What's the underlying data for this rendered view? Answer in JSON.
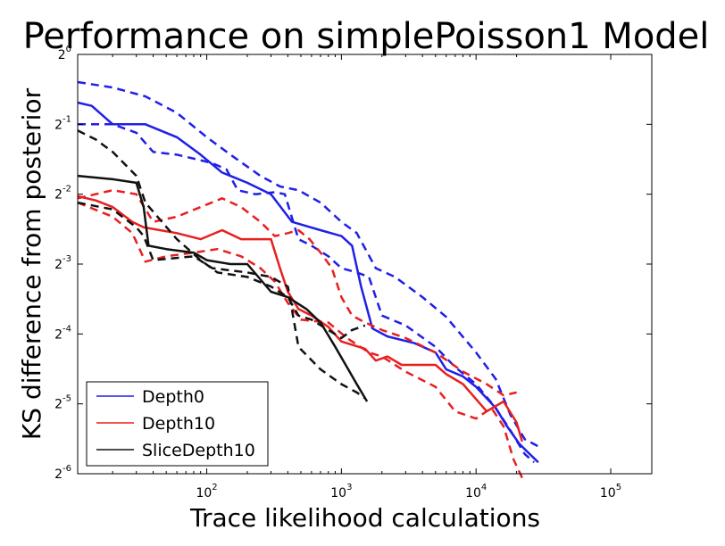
{
  "chart_data": {
    "type": "line",
    "title": "Performance on simplePoisson1 Model",
    "xlabel": "Trace likelihood calculations",
    "ylabel": "KS difference from posterior",
    "xscale": "log10",
    "yscale": "log2",
    "xlim": [
      11,
      20000
    ],
    "ylim": [
      0.015625,
      1
    ],
    "x_ticks": [
      {
        "base": "10",
        "exp": "2",
        "value": 100
      },
      {
        "base": "10",
        "exp": "3",
        "value": 1000
      },
      {
        "base": "10",
        "exp": "4",
        "value": 10000
      },
      {
        "base": "10",
        "exp": "5",
        "value": 100000
      }
    ],
    "y_ticks": [
      {
        "base": "2",
        "exp": "0",
        "value": 1
      },
      {
        "base": "2",
        "exp": "-1",
        "value": 0.5
      },
      {
        "base": "2",
        "exp": "-2",
        "value": 0.25
      },
      {
        "base": "2",
        "exp": "-3",
        "value": 0.125
      },
      {
        "base": "2",
        "exp": "-4",
        "value": 0.0625
      },
      {
        "base": "2",
        "exp": "-5",
        "value": 0.03125
      },
      {
        "base": "2",
        "exp": "-6",
        "value": 0.015625
      }
    ],
    "legend_position": "bottom-left",
    "series": [
      {
        "name": "Depth0",
        "color": "#1f1fe8",
        "style": "solid",
        "points": [
          [
            11,
            0.62
          ],
          [
            14,
            0.6
          ],
          [
            20,
            0.5
          ],
          [
            35,
            0.5
          ],
          [
            60,
            0.44
          ],
          [
            90,
            0.37
          ],
          [
            130,
            0.31
          ],
          [
            200,
            0.28
          ],
          [
            300,
            0.25
          ],
          [
            430,
            0.19
          ],
          [
            700,
            0.175
          ],
          [
            1000,
            0.165
          ],
          [
            1200,
            0.15
          ],
          [
            1400,
            0.1
          ],
          [
            1700,
            0.066
          ],
          [
            2200,
            0.061
          ],
          [
            3500,
            0.057
          ],
          [
            5000,
            0.052
          ],
          [
            6000,
            0.044
          ],
          [
            8000,
            0.041
          ],
          [
            10000,
            0.037
          ],
          [
            14000,
            0.03
          ],
          [
            17000,
            0.025
          ],
          [
            21000,
            0.021
          ],
          [
            25000,
            0.019
          ],
          [
            29000,
            0.0175
          ]
        ]
      },
      {
        "name": "",
        "color": "#1f1fe8",
        "style": "dashed",
        "points": [
          [
            11,
            0.76
          ],
          [
            20,
            0.72
          ],
          [
            35,
            0.66
          ],
          [
            60,
            0.56
          ],
          [
            100,
            0.44
          ],
          [
            150,
            0.37
          ],
          [
            250,
            0.3
          ],
          [
            350,
            0.27
          ],
          [
            480,
            0.26
          ],
          [
            700,
            0.23
          ],
          [
            1000,
            0.19
          ],
          [
            1300,
            0.17
          ],
          [
            1800,
            0.12
          ],
          [
            2500,
            0.11
          ],
          [
            4000,
            0.09
          ],
          [
            6000,
            0.074
          ],
          [
            10000,
            0.052
          ],
          [
            14000,
            0.04
          ],
          [
            18000,
            0.028
          ],
          [
            23000,
            0.022
          ],
          [
            29000,
            0.0205
          ]
        ]
      },
      {
        "name": "",
        "color": "#1f1fe8",
        "style": "dashed",
        "points": [
          [
            11,
            0.5
          ],
          [
            20,
            0.5
          ],
          [
            30,
            0.46
          ],
          [
            40,
            0.38
          ],
          [
            60,
            0.37
          ],
          [
            90,
            0.35
          ],
          [
            110,
            0.34
          ],
          [
            140,
            0.32
          ],
          [
            170,
            0.26
          ],
          [
            230,
            0.25
          ],
          [
            320,
            0.255
          ],
          [
            380,
            0.25
          ],
          [
            480,
            0.16
          ],
          [
            600,
            0.15
          ],
          [
            800,
            0.135
          ],
          [
            1000,
            0.12
          ],
          [
            1300,
            0.115
          ],
          [
            1600,
            0.11
          ],
          [
            2000,
            0.075
          ],
          [
            3000,
            0.068
          ],
          [
            5000,
            0.055
          ],
          [
            7000,
            0.045
          ],
          [
            10000,
            0.038
          ],
          [
            14000,
            0.03
          ],
          [
            18000,
            0.024
          ],
          [
            23000,
            0.019
          ],
          [
            27000,
            0.0175
          ]
        ]
      },
      {
        "name": "Depth10",
        "color": "#e81f1f",
        "style": "solid",
        "points": [
          [
            11,
            0.245
          ],
          [
            15,
            0.235
          ],
          [
            20,
            0.22
          ],
          [
            28,
            0.19
          ],
          [
            34,
            0.18
          ],
          [
            45,
            0.175
          ],
          [
            60,
            0.17
          ],
          [
            90,
            0.16
          ],
          [
            130,
            0.175
          ],
          [
            180,
            0.16
          ],
          [
            300,
            0.16
          ],
          [
            350,
            0.12
          ],
          [
            400,
            0.095
          ],
          [
            480,
            0.08
          ],
          [
            600,
            0.075
          ],
          [
            800,
            0.067
          ],
          [
            1000,
            0.058
          ],
          [
            1500,
            0.054
          ],
          [
            1800,
            0.048
          ],
          [
            2200,
            0.05
          ],
          [
            2800,
            0.046
          ],
          [
            5000,
            0.046
          ],
          [
            6000,
            0.042
          ],
          [
            8000,
            0.038
          ],
          [
            12000,
            0.029
          ],
          [
            16000,
            0.032
          ],
          [
            20000,
            0.026
          ],
          [
            22000,
            0.0215
          ]
        ]
      },
      {
        "name": "",
        "color": "#e81f1f",
        "style": "dashed",
        "points": [
          [
            11,
            0.24
          ],
          [
            20,
            0.26
          ],
          [
            30,
            0.25
          ],
          [
            40,
            0.19
          ],
          [
            60,
            0.2
          ],
          [
            90,
            0.22
          ],
          [
            130,
            0.24
          ],
          [
            180,
            0.22
          ],
          [
            250,
            0.19
          ],
          [
            320,
            0.165
          ],
          [
            400,
            0.17
          ],
          [
            480,
            0.175
          ],
          [
            580,
            0.16
          ],
          [
            700,
            0.14
          ],
          [
            850,
            0.12
          ],
          [
            1000,
            0.09
          ],
          [
            1200,
            0.075
          ],
          [
            1500,
            0.07
          ],
          [
            2000,
            0.065
          ],
          [
            3000,
            0.06
          ],
          [
            5000,
            0.052
          ],
          [
            8000,
            0.043
          ],
          [
            12000,
            0.038
          ],
          [
            16000,
            0.034
          ],
          [
            20000,
            0.035
          ]
        ]
      },
      {
        "name": "",
        "color": "#e81f1f",
        "style": "dashed",
        "points": [
          [
            11,
            0.23
          ],
          [
            20,
            0.2
          ],
          [
            28,
            0.17
          ],
          [
            35,
            0.128
          ],
          [
            50,
            0.135
          ],
          [
            80,
            0.14
          ],
          [
            120,
            0.145
          ],
          [
            180,
            0.135
          ],
          [
            250,
            0.12
          ],
          [
            320,
            0.105
          ],
          [
            400,
            0.085
          ],
          [
            500,
            0.072
          ],
          [
            800,
            0.07
          ],
          [
            1100,
            0.06
          ],
          [
            1600,
            0.052
          ],
          [
            2000,
            0.05
          ],
          [
            3000,
            0.043
          ],
          [
            5000,
            0.037
          ],
          [
            7000,
            0.029
          ],
          [
            10000,
            0.027
          ],
          [
            13000,
            0.03
          ],
          [
            16000,
            0.025
          ],
          [
            19000,
            0.018
          ],
          [
            22000,
            0.015
          ]
        ]
      },
      {
        "name": "SliceDepth10",
        "color": "#111111",
        "style": "solid",
        "points": [
          [
            11,
            0.3
          ],
          [
            20,
            0.29
          ],
          [
            30,
            0.28
          ],
          [
            34,
            0.22
          ],
          [
            37,
            0.15
          ],
          [
            50,
            0.145
          ],
          [
            80,
            0.14
          ],
          [
            100,
            0.13
          ],
          [
            150,
            0.125
          ],
          [
            200,
            0.125
          ],
          [
            300,
            0.095
          ],
          [
            400,
            0.09
          ],
          [
            550,
            0.08
          ],
          [
            700,
            0.07
          ],
          [
            900,
            0.055
          ],
          [
            1100,
            0.045
          ],
          [
            1300,
            0.038
          ],
          [
            1550,
            0.032
          ]
        ]
      },
      {
        "name": "",
        "color": "#111111",
        "style": "dashed",
        "points": [
          [
            11,
            0.47
          ],
          [
            15,
            0.43
          ],
          [
            20,
            0.38
          ],
          [
            30,
            0.3
          ],
          [
            35,
            0.23
          ],
          [
            60,
            0.16
          ],
          [
            90,
            0.13
          ],
          [
            120,
            0.115
          ],
          [
            200,
            0.11
          ],
          [
            300,
            0.1
          ],
          [
            400,
            0.09
          ],
          [
            480,
            0.075
          ],
          [
            600,
            0.072
          ],
          [
            800,
            0.065
          ],
          [
            1000,
            0.06
          ],
          [
            1200,
            0.065
          ],
          [
            1500,
            0.068
          ]
        ]
      },
      {
        "name": "",
        "color": "#111111",
        "style": "dashed",
        "points": [
          [
            11,
            0.23
          ],
          [
            20,
            0.215
          ],
          [
            30,
            0.18
          ],
          [
            34,
            0.165
          ],
          [
            40,
            0.13
          ],
          [
            80,
            0.135
          ],
          [
            110,
            0.12
          ],
          [
            200,
            0.115
          ],
          [
            300,
            0.11
          ],
          [
            400,
            0.1
          ],
          [
            480,
            0.055
          ],
          [
            700,
            0.044
          ],
          [
            1000,
            0.038
          ],
          [
            1300,
            0.035
          ],
          [
            1500,
            0.033
          ]
        ]
      }
    ]
  }
}
